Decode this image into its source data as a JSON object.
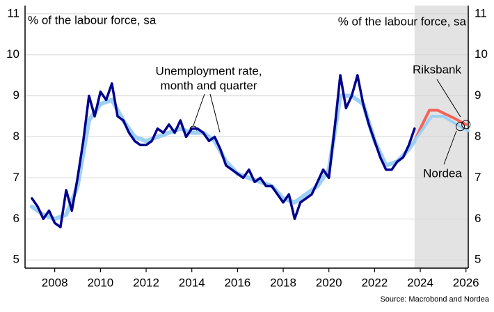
{
  "chart_data": {
    "type": "line",
    "y_label_left": "% of the labour force, sa",
    "y_label_right": "% of the labour force, sa",
    "source": "Source: Macrobond and Nordea",
    "annotation": [
      "Unemployment rate,",
      "month and quarter"
    ],
    "xlim": [
      2006.7,
      2026.1
    ],
    "xticks": [
      2008,
      2010,
      2012,
      2014,
      2016,
      2018,
      2020,
      2022,
      2024,
      2026
    ],
    "ylim": [
      4.8,
      11.2
    ],
    "yticks": [
      5,
      6,
      7,
      8,
      9,
      10,
      11
    ],
    "grid": true,
    "shaded_region": [
      2023.75,
      2026.1
    ],
    "shade_color": "#e3e3e3",
    "series": [
      {
        "color": "#9dd0f5",
        "x": [
          2007.0,
          2007.5,
          2008.0,
          2008.5,
          2009.0,
          2009.5,
          2010.0,
          2010.5,
          2011.0,
          2011.5,
          2012.0,
          2012.5,
          2013.0,
          2013.5,
          2014.0,
          2014.5,
          2015.0,
          2015.5,
          2016.0,
          2016.5,
          2017.0,
          2017.5,
          2018.0,
          2018.5,
          2019.0,
          2019.5,
          2020.0,
          2020.5,
          2021.0,
          2021.5,
          2022.0,
          2022.5,
          2023.0,
          2023.5,
          2023.75
        ],
        "values": [
          6.3,
          6.1,
          6.0,
          6.1,
          6.8,
          8.4,
          8.8,
          8.9,
          8.4,
          8.0,
          7.9,
          8.0,
          8.1,
          8.2,
          8.1,
          8.1,
          7.9,
          7.4,
          7.1,
          7.0,
          6.9,
          6.8,
          6.5,
          6.4,
          6.6,
          6.8,
          7.2,
          9.0,
          9.0,
          8.8,
          7.9,
          7.3,
          7.4,
          7.7,
          7.9
        ]
      },
      {
        "color": "#00008c",
        "x": [
          2007.0,
          2007.25,
          2007.5,
          2007.75,
          2008.0,
          2008.25,
          2008.5,
          2008.75,
          2009.0,
          2009.25,
          2009.5,
          2009.75,
          2010.0,
          2010.25,
          2010.5,
          2010.75,
          2011.0,
          2011.25,
          2011.5,
          2011.75,
          2012.0,
          2012.25,
          2012.5,
          2012.75,
          2013.0,
          2013.25,
          2013.5,
          2013.75,
          2014.0,
          2014.25,
          2014.5,
          2014.75,
          2015.0,
          2015.25,
          2015.5,
          2015.75,
          2016.0,
          2016.25,
          2016.5,
          2016.75,
          2017.0,
          2017.25,
          2017.5,
          2017.75,
          2018.0,
          2018.25,
          2018.5,
          2018.75,
          2019.0,
          2019.25,
          2019.5,
          2019.75,
          2020.0,
          2020.25,
          2020.5,
          2020.75,
          2021.0,
          2021.25,
          2021.5,
          2021.75,
          2022.0,
          2022.25,
          2022.5,
          2022.75,
          2023.0,
          2023.25,
          2023.5,
          2023.75
        ],
        "values": [
          6.5,
          6.3,
          6.0,
          6.2,
          5.9,
          5.8,
          6.7,
          6.2,
          7.0,
          7.9,
          9.0,
          8.5,
          9.1,
          8.9,
          9.3,
          8.5,
          8.4,
          8.1,
          7.9,
          7.8,
          7.8,
          7.9,
          8.2,
          8.1,
          8.3,
          8.1,
          8.4,
          8.0,
          8.2,
          8.2,
          8.1,
          7.9,
          8.0,
          7.7,
          7.3,
          7.2,
          7.1,
          7.0,
          7.2,
          6.9,
          7.0,
          6.8,
          6.8,
          6.6,
          6.4,
          6.6,
          6.0,
          6.4,
          6.5,
          6.6,
          6.9,
          7.2,
          7.0,
          8.2,
          9.5,
          8.7,
          9.0,
          9.5,
          8.8,
          8.3,
          7.9,
          7.5,
          7.2,
          7.2,
          7.4,
          7.5,
          7.8,
          8.2
        ]
      },
      {
        "name": "Riksbank",
        "color": "#f0645a",
        "x": [
          2023.75,
          2024.0,
          2024.4,
          2024.75,
          2025.5,
          2026.0
        ],
        "values": [
          7.9,
          8.2,
          8.65,
          8.65,
          8.45,
          8.3
        ]
      },
      {
        "name": "Nordea",
        "color": "#9dd0f5",
        "x": [
          2023.75,
          2024.5,
          2025.0,
          2025.75,
          2026.1
        ],
        "values": [
          7.9,
          8.5,
          8.5,
          8.25,
          8.15
        ]
      }
    ]
  }
}
